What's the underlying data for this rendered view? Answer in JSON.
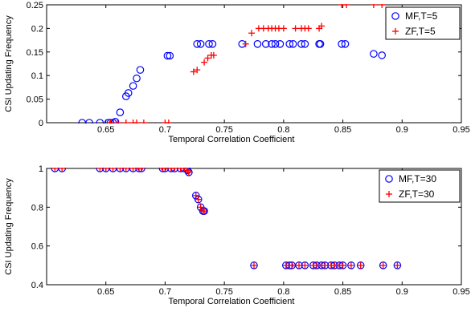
{
  "chart_data": [
    {
      "type": "scatter",
      "xlabel": "Temporal Correlation Coefficient",
      "ylabel": "CSI Updating Frequency",
      "xlim": [
        0.6,
        0.95
      ],
      "ylim": [
        0,
        0.25
      ],
      "xticks": [
        0.65,
        0.7,
        0.75,
        0.8,
        0.85,
        0.9,
        0.95
      ],
      "xtick_labels": [
        "0.65",
        "0.7",
        "0.75",
        "0.8",
        "0.85",
        "0.9",
        "0.95"
      ],
      "yticks": [
        0,
        0.05,
        0.1,
        0.15,
        0.2,
        0.25
      ],
      "ytick_labels": [
        "0",
        "0.05",
        "0.1",
        "0.15",
        "0.2",
        "0.25"
      ],
      "grid": false,
      "legend_position": "top-right",
      "series": [
        {
          "name": "MF,T=5",
          "marker": "circle",
          "color": "#0000ff",
          "points": [
            [
              0.63,
              0
            ],
            [
              0.636,
              0
            ],
            [
              0.645,
              0
            ],
            [
              0.652,
              0
            ],
            [
              0.654,
              0
            ],
            [
              0.656,
              0
            ],
            [
              0.658,
              0.002
            ],
            [
              0.662,
              0.022
            ],
            [
              0.667,
              0.056
            ],
            [
              0.669,
              0.063
            ],
            [
              0.673,
              0.078
            ],
            [
              0.676,
              0.094
            ],
            [
              0.679,
              0.112
            ],
            [
              0.702,
              0.142
            ],
            [
              0.704,
              0.142
            ],
            [
              0.727,
              0.167
            ],
            [
              0.73,
              0.167
            ],
            [
              0.737,
              0.167
            ],
            [
              0.74,
              0.167
            ],
            [
              0.765,
              0.167
            ],
            [
              0.778,
              0.167
            ],
            [
              0.785,
              0.167
            ],
            [
              0.79,
              0.167
            ],
            [
              0.793,
              0.167
            ],
            [
              0.797,
              0.167
            ],
            [
              0.805,
              0.167
            ],
            [
              0.808,
              0.167
            ],
            [
              0.815,
              0.167
            ],
            [
              0.818,
              0.167
            ],
            [
              0.83,
              0.167
            ],
            [
              0.831,
              0.167
            ],
            [
              0.849,
              0.167
            ],
            [
              0.852,
              0.167
            ],
            [
              0.876,
              0.146
            ],
            [
              0.883,
              0.143
            ]
          ]
        },
        {
          "name": "ZF,T=5",
          "marker": "plus",
          "color": "#ff0000",
          "points": [
            [
              0.654,
              0
            ],
            [
              0.66,
              0
            ],
            [
              0.667,
              0
            ],
            [
              0.673,
              0
            ],
            [
              0.676,
              0
            ],
            [
              0.682,
              0
            ],
            [
              0.7,
              0
            ],
            [
              0.703,
              0
            ],
            [
              0.724,
              0.108
            ],
            [
              0.727,
              0.112
            ],
            [
              0.733,
              0.128
            ],
            [
              0.736,
              0.137
            ],
            [
              0.739,
              0.143
            ],
            [
              0.741,
              0.143
            ],
            [
              0.768,
              0.167
            ],
            [
              0.773,
              0.19
            ],
            [
              0.779,
              0.2
            ],
            [
              0.783,
              0.2
            ],
            [
              0.787,
              0.2
            ],
            [
              0.79,
              0.2
            ],
            [
              0.793,
              0.2
            ],
            [
              0.796,
              0.2
            ],
            [
              0.8,
              0.2
            ],
            [
              0.81,
              0.2
            ],
            [
              0.815,
              0.2
            ],
            [
              0.818,
              0.2
            ],
            [
              0.821,
              0.2
            ],
            [
              0.83,
              0.2
            ],
            [
              0.832,
              0.205
            ],
            [
              0.849,
              0.25
            ],
            [
              0.853,
              0.25
            ],
            [
              0.876,
              0.25
            ],
            [
              0.883,
              0.25
            ]
          ]
        }
      ]
    },
    {
      "type": "scatter",
      "xlabel": "Temporal Correlation Coefficient",
      "ylabel": "CSI Updating Frequency",
      "xlim": [
        0.6,
        0.95
      ],
      "ylim": [
        0.4,
        1.0
      ],
      "xticks": [
        0.65,
        0.7,
        0.75,
        0.8,
        0.85,
        0.9,
        0.95
      ],
      "xtick_labels": [
        "0.65",
        "0.7",
        "0.75",
        "0.8",
        "0.85",
        "0.9",
        "0.95"
      ],
      "yticks": [
        0.4,
        0.6,
        0.8,
        1.0
      ],
      "ytick_labels": [
        "0.4",
        "0.6",
        "0.8",
        "1"
      ],
      "grid": false,
      "legend_position": "top-right",
      "series": [
        {
          "name": "MF,T=30",
          "marker": "circle",
          "color": "#0000ff",
          "points": [
            [
              0.607,
              1
            ],
            [
              0.613,
              1
            ],
            [
              0.645,
              1
            ],
            [
              0.65,
              1
            ],
            [
              0.656,
              1
            ],
            [
              0.662,
              1
            ],
            [
              0.667,
              1
            ],
            [
              0.673,
              1
            ],
            [
              0.678,
              1
            ],
            [
              0.68,
              1
            ],
            [
              0.698,
              1
            ],
            [
              0.7,
              1
            ],
            [
              0.705,
              1
            ],
            [
              0.708,
              1
            ],
            [
              0.713,
              1
            ],
            [
              0.716,
              1
            ],
            [
              0.719,
              0.99
            ],
            [
              0.72,
              0.98
            ],
            [
              0.726,
              0.86
            ],
            [
              0.728,
              0.84
            ],
            [
              0.73,
              0.8
            ],
            [
              0.732,
              0.78
            ],
            [
              0.733,
              0.78
            ],
            [
              0.775,
              0.5
            ],
            [
              0.802,
              0.5
            ],
            [
              0.805,
              0.5
            ],
            [
              0.807,
              0.5
            ],
            [
              0.813,
              0.5
            ],
            [
              0.818,
              0.5
            ],
            [
              0.825,
              0.5
            ],
            [
              0.828,
              0.5
            ],
            [
              0.832,
              0.5
            ],
            [
              0.835,
              0.5
            ],
            [
              0.84,
              0.5
            ],
            [
              0.843,
              0.5
            ],
            [
              0.847,
              0.5
            ],
            [
              0.85,
              0.5
            ],
            [
              0.857,
              0.5
            ],
            [
              0.865,
              0.5
            ],
            [
              0.884,
              0.5
            ],
            [
              0.896,
              0.5
            ]
          ]
        },
        {
          "name": "ZF,T=30",
          "marker": "plus",
          "color": "#ff0000",
          "points": [
            [
              0.607,
              1
            ],
            [
              0.613,
              1
            ],
            [
              0.645,
              1
            ],
            [
              0.65,
              1
            ],
            [
              0.656,
              1
            ],
            [
              0.662,
              1
            ],
            [
              0.667,
              1
            ],
            [
              0.673,
              1
            ],
            [
              0.678,
              1
            ],
            [
              0.68,
              1
            ],
            [
              0.698,
              1
            ],
            [
              0.7,
              1
            ],
            [
              0.705,
              1
            ],
            [
              0.708,
              1
            ],
            [
              0.713,
              1
            ],
            [
              0.716,
              1
            ],
            [
              0.719,
              0.99
            ],
            [
              0.72,
              0.98
            ],
            [
              0.726,
              0.86
            ],
            [
              0.728,
              0.84
            ],
            [
              0.73,
              0.8
            ],
            [
              0.732,
              0.78
            ],
            [
              0.733,
              0.78
            ],
            [
              0.775,
              0.5
            ],
            [
              0.802,
              0.5
            ],
            [
              0.805,
              0.5
            ],
            [
              0.807,
              0.5
            ],
            [
              0.813,
              0.5
            ],
            [
              0.818,
              0.5
            ],
            [
              0.825,
              0.5
            ],
            [
              0.828,
              0.5
            ],
            [
              0.832,
              0.5
            ],
            [
              0.835,
              0.5
            ],
            [
              0.84,
              0.5
            ],
            [
              0.843,
              0.5
            ],
            [
              0.847,
              0.5
            ],
            [
              0.85,
              0.5
            ],
            [
              0.857,
              0.5
            ],
            [
              0.865,
              0.5
            ],
            [
              0.884,
              0.5
            ],
            [
              0.896,
              0.5
            ]
          ]
        }
      ]
    }
  ]
}
